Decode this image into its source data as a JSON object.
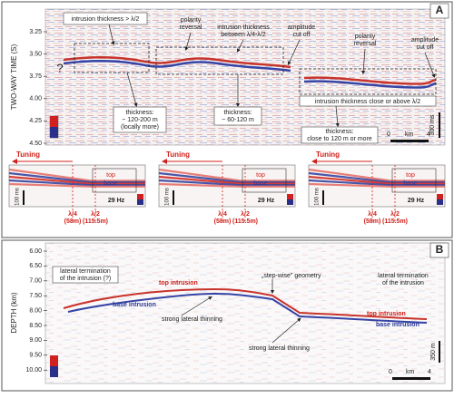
{
  "panel_a": {
    "label": "A",
    "y_axis_label": "TWO-WAY TIME (S)",
    "y_ticks": [
      "3.25",
      "3.50",
      "3.75",
      "4.00",
      "4.25",
      "4.50"
    ],
    "annotations": {
      "box_left": "intrusion thickness > λ/2",
      "polarity_1": [
        "polarity",
        "reversal"
      ],
      "between": [
        "intrusion thickness",
        "between λ/4-λ/2"
      ],
      "cutoff_1": [
        "amplitude",
        "cut off"
      ],
      "polarity_2": [
        "polarity",
        "reversal"
      ],
      "cutoff_2": [
        "amplitude",
        "cut off"
      ],
      "question": "?",
      "box_right": "intrusion thickness close or above λ/2",
      "thick_1": [
        "thickness:",
        "~ 120-200 m",
        "(locally more)"
      ],
      "thick_2": [
        "thickness:",
        "~ 60-120 m"
      ],
      "thick_3": [
        "thickness:",
        "close to 120 m or more"
      ]
    },
    "time_scale": "300 ms",
    "distance_scale": [
      "0",
      "km",
      "4"
    ],
    "tuning_panels": [
      {
        "title": "Tuning",
        "top": "top",
        "base": "base",
        "time_scale": "100 ms",
        "frequency": "29 Hz",
        "quarter": "λ/4",
        "quarter_m": "(58m)",
        "half": "λ/2",
        "half_m": "(115.5m)"
      },
      {
        "title": "Tuning",
        "top": "top",
        "base": "base",
        "time_scale": "100 ms",
        "frequency": "29 Hz",
        "quarter": "λ/4",
        "quarter_m": "(58m)",
        "half": "λ/2",
        "half_m": "(115.5m)"
      },
      {
        "title": "Tuning",
        "top": "top",
        "base": "base",
        "time_scale": "100 ms",
        "frequency": "29 Hz",
        "quarter": "λ/4",
        "quarter_m": "(58m)",
        "half": "λ/2",
        "half_m": "(115.5m)"
      }
    ]
  },
  "panel_b": {
    "label": "B",
    "y_axis_label": "DEPTH (km)",
    "y_ticks": [
      "6.00",
      "6.50",
      "7.00",
      "7.50",
      "8.00",
      "8.50",
      "9.00",
      "9.50",
      "10.00"
    ],
    "annotations": {
      "termination_left": [
        "lateral termination",
        "of the intrusion (?)"
      ],
      "top_left": "top intrusion",
      "base_left": "base intrusion",
      "thinning_1": "strong lateral thinning",
      "stepwise": "„step-wise\" geometry",
      "termination_right": [
        "lateral termination",
        "of the intrusion"
      ],
      "top_right": "top intrusion",
      "base_right": "base intrusion",
      "thinning_2": "strong lateral thinning"
    },
    "depth_scale": "350 m",
    "distance_scale": [
      "0",
      "km",
      "4"
    ]
  }
}
